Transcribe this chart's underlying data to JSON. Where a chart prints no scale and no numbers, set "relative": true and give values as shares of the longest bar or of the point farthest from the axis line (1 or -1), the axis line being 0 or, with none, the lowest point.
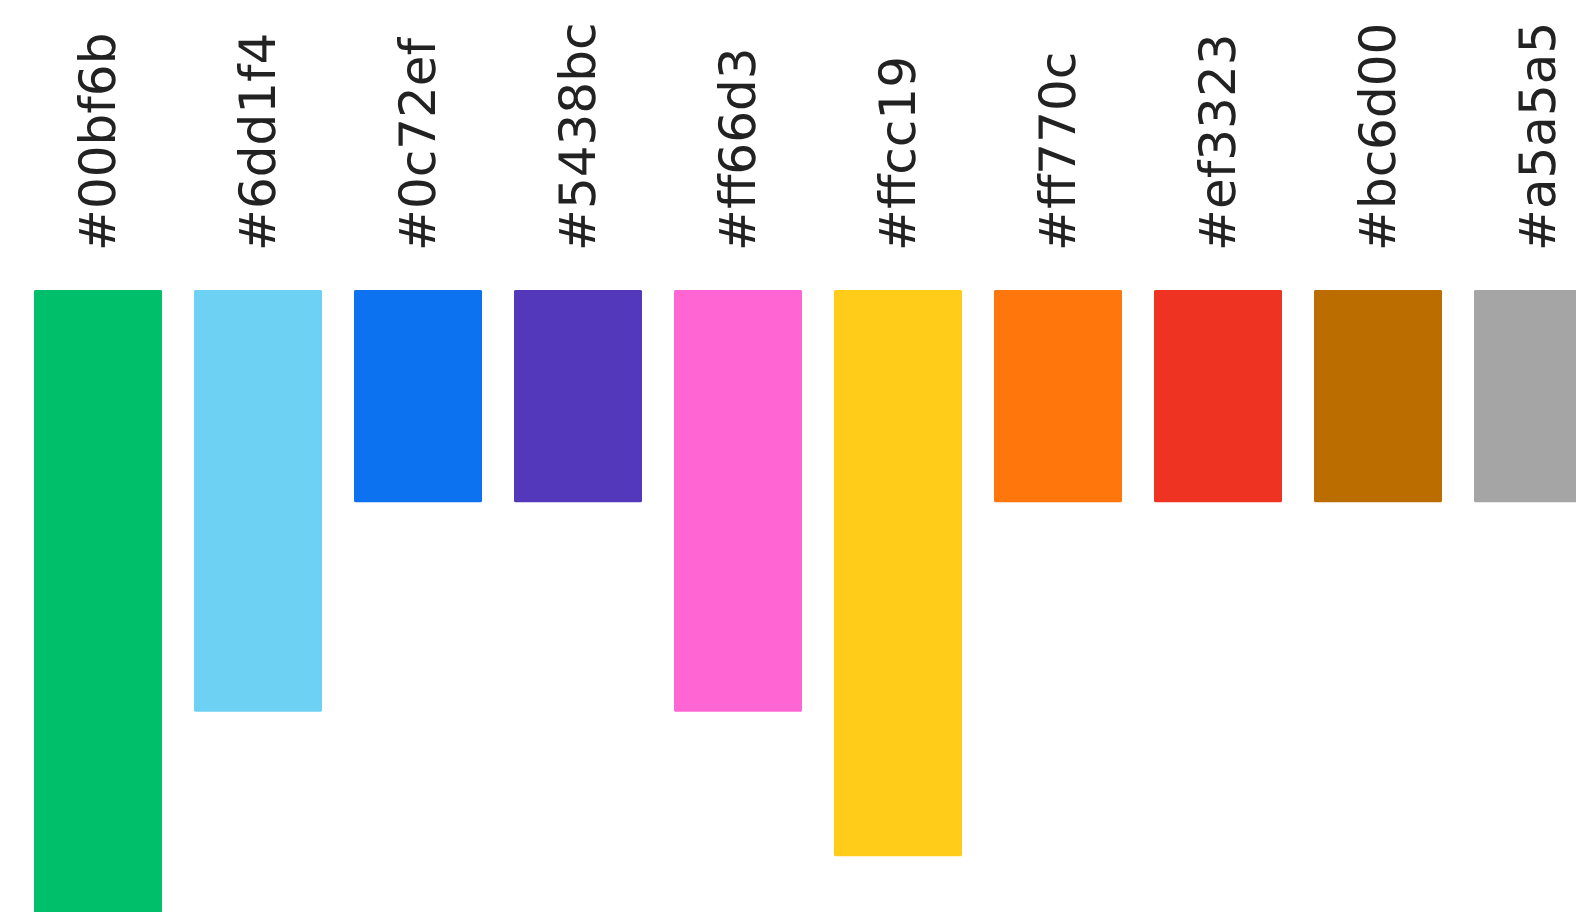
{
  "chart_data": {
    "type": "bar",
    "relative": true,
    "categories": [
      "#00bf6b",
      "#6dd1f4",
      "#0c72ef",
      "#5438bc",
      "#ff66d3",
      "#ffcc19",
      "#ff770c",
      "#ef3323",
      "#bc6d00",
      "#a5a5a5"
    ],
    "values": [
      -1,
      -0.675,
      -0.338,
      -0.338,
      -0.675,
      -0.907,
      -0.338,
      -0.338,
      -0.338,
      -0.338
    ],
    "colors": [
      "#00bf6b",
      "#6dd1f4",
      "#0c72ef",
      "#5438bc",
      "#ff66d3",
      "#ffcc19",
      "#ff770c",
      "#ef3323",
      "#bc6d00",
      "#a5a5a5"
    ],
    "grid": false,
    "legend": false
  }
}
